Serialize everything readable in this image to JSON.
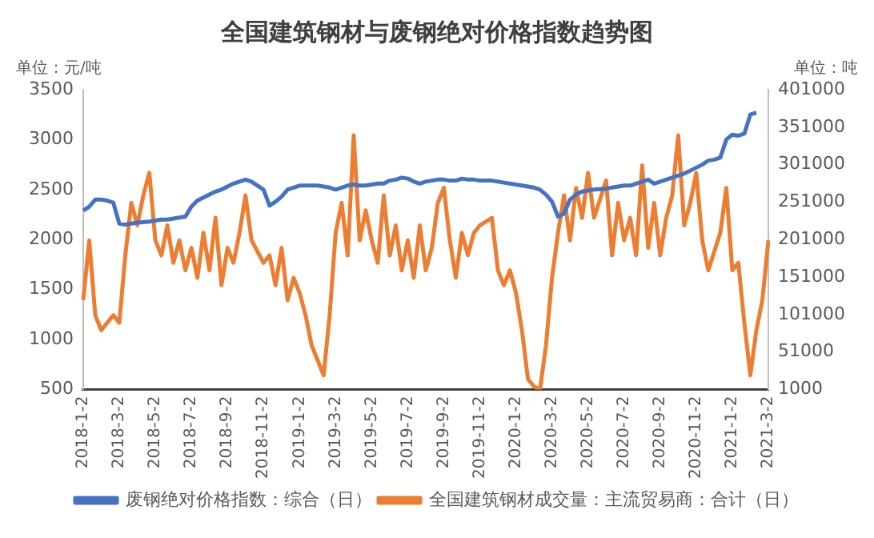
{
  "chart_data": {
    "type": "line",
    "title": "全国建筑钢材与废钢绝对价格指数趋势图",
    "ylabel": "单位：元/吨",
    "y2label": "单位：吨",
    "categories": [
      "2018-1-2",
      null,
      null,
      null,
      null,
      null,
      "2018-3-2",
      null,
      null,
      null,
      null,
      null,
      "2018-5-2",
      null,
      null,
      null,
      null,
      null,
      "2018-7-2",
      null,
      null,
      null,
      null,
      null,
      "2018-9-2",
      null,
      null,
      null,
      null,
      null,
      "2018-11-2",
      null,
      null,
      null,
      null,
      null,
      "2019-1-2",
      null,
      null,
      null,
      null,
      null,
      "2019-3-2",
      null,
      null,
      null,
      null,
      null,
      "2019-5-2",
      null,
      null,
      null,
      null,
      null,
      "2019-7-2",
      null,
      null,
      null,
      null,
      null,
      "2019-9-2",
      null,
      null,
      null,
      null,
      null,
      "2019-11-2",
      null,
      null,
      null,
      null,
      null,
      "2020-1-2",
      null,
      null,
      null,
      null,
      null,
      "2020-3-2",
      null,
      null,
      null,
      null,
      null,
      "2020-5-2",
      null,
      null,
      null,
      null,
      null,
      "2020-7-2",
      null,
      null,
      null,
      null,
      null,
      "2020-9-2",
      null,
      null,
      null,
      null,
      null,
      "2020-11-2",
      null,
      null,
      null,
      null,
      null,
      "2021-1-2",
      null,
      null,
      null,
      null,
      null,
      "2021-3-2"
    ],
    "series": [
      {
        "name": "废钢绝对价格指数：综合（日）",
        "color": "#4472c4",
        "values": [
          2290,
          2330,
          2400,
          2400,
          2390,
          2370,
          2160,
          2150,
          2160,
          2170,
          2175,
          2180,
          2190,
          2200,
          2200,
          2210,
          2220,
          2230,
          2330,
          2390,
          2420,
          2450,
          2480,
          2500,
          2530,
          2560,
          2580,
          2600,
          2580,
          2540,
          2500,
          2340,
          2380,
          2430,
          2500,
          2520,
          2540,
          2540,
          2540,
          2540,
          2530,
          2520,
          2500,
          2520,
          2540,
          2550,
          2540,
          2540,
          2550,
          2560,
          2560,
          2590,
          2600,
          2620,
          2610,
          2580,
          2560,
          2580,
          2590,
          2600,
          2600,
          2590,
          2590,
          2610,
          2600,
          2600,
          2590,
          2590,
          2590,
          2580,
          2570,
          2560,
          2550,
          2540,
          2530,
          2520,
          2500,
          2450,
          2380,
          2230,
          2260,
          2400,
          2450,
          2480,
          2490,
          2500,
          2505,
          2510,
          2520,
          2530,
          2540,
          2540,
          2560,
          2580,
          2600,
          2560,
          2580,
          2600,
          2620,
          2640,
          2660,
          2690,
          2720,
          2750,
          2790,
          2800,
          2820,
          3000,
          3050,
          3040,
          3060,
          3250,
          3270,
          null,
          null
        ]
      },
      {
        "name": "全国建筑钢材成交量：主流贸易商：合计（日）",
        "color": "#ed7d31",
        "axis": "y2",
        "values": [
          120000,
          200000,
          100000,
          80000,
          90000,
          100000,
          90000,
          180000,
          250000,
          220000,
          260000,
          290000,
          200000,
          180000,
          220000,
          170000,
          200000,
          160000,
          190000,
          150000,
          210000,
          160000,
          230000,
          140000,
          190000,
          170000,
          210000,
          260000,
          200000,
          185000,
          170000,
          180000,
          140000,
          190000,
          120000,
          150000,
          130000,
          100000,
          60000,
          40000,
          20000,
          100000,
          210000,
          250000,
          180000,
          340000,
          200000,
          240000,
          200000,
          170000,
          260000,
          180000,
          220000,
          160000,
          200000,
          150000,
          220000,
          160000,
          190000,
          250000,
          270000,
          200000,
          150000,
          210000,
          180000,
          210000,
          220000,
          225000,
          230000,
          160000,
          140000,
          160000,
          130000,
          80000,
          15000,
          5000,
          1000,
          60000,
          150000,
          210000,
          260000,
          200000,
          270000,
          230000,
          290000,
          230000,
          255000,
          280000,
          180000,
          250000,
          200000,
          230000,
          180000,
          300000,
          190000,
          250000,
          180000,
          230000,
          260000,
          340000,
          220000,
          250000,
          290000,
          200000,
          160000,
          185000,
          210000,
          270000,
          160000,
          170000,
          90000,
          20000,
          80000,
          120000,
          200000
        ]
      }
    ],
    "ylim": [
      500,
      3500
    ],
    "yticks": [
      500,
      1000,
      1500,
      2000,
      2500,
      3000,
      3500
    ],
    "y2lim": [
      1000,
      401000
    ],
    "y2ticks": [
      1000,
      51000,
      101000,
      151000,
      201000,
      251000,
      301000,
      351000,
      401000
    ],
    "grid": false,
    "legend": "bottom",
    "marker": "none",
    "line_style": "solid"
  }
}
